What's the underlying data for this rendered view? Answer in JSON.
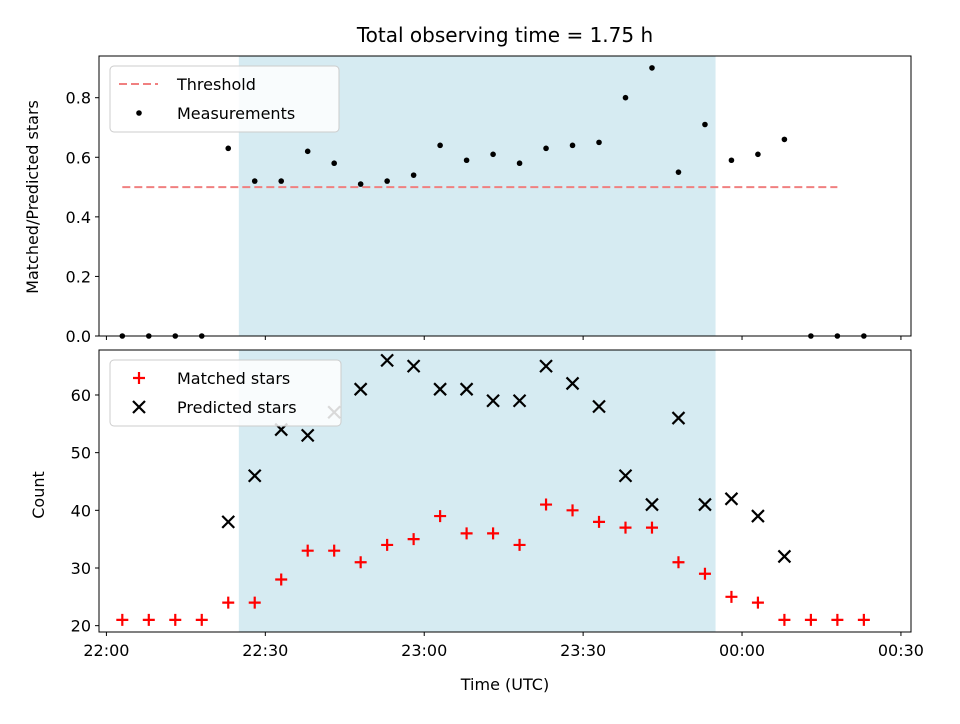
{
  "title": "Total observing time = 1.75 h",
  "colors": {
    "threshold": "#f08080",
    "measurement": "#000000",
    "matched": "#ff0000",
    "predicted": "#000000",
    "observing_span": "#add8e6"
  },
  "chart_data": [
    {
      "type": "scatter",
      "panel": "top",
      "title": "Total observing time = 1.75 h",
      "xlabel": "",
      "ylabel": "Matched/Predicted stars",
      "ylim": [
        0,
        0.94
      ],
      "yticks": [
        "0.0",
        "0.2",
        "0.4",
        "0.6",
        "0.8"
      ],
      "ytick_values": [
        0,
        0.2,
        0.4,
        0.6,
        0.8
      ],
      "shaded_span_x": [
        "22:25",
        "23:55"
      ],
      "legend": {
        "placement": "upper-left",
        "entries": [
          "Threshold",
          "Measurements"
        ]
      },
      "series": [
        {
          "name": "Threshold",
          "style": "dashed-line",
          "x": [
            "22:03",
            "22:48",
            "23:33",
            "00:18"
          ],
          "values": [
            0.5,
            0.5,
            0.5,
            0.5
          ]
        },
        {
          "name": "Measurements",
          "style": "dot",
          "x": [
            "22:03",
            "22:08",
            "22:13",
            "22:18",
            "22:23",
            "22:28",
            "22:33",
            "22:38",
            "22:43",
            "22:48",
            "22:53",
            "22:58",
            "23:03",
            "23:08",
            "23:13",
            "23:18",
            "23:23",
            "23:28",
            "23:33",
            "23:38",
            "23:43",
            "23:48",
            "23:53",
            "23:58",
            "00:03",
            "00:08",
            "00:13",
            "00:18",
            "00:23"
          ],
          "values": [
            0,
            0,
            0,
            0,
            0.63,
            0.52,
            0.52,
            0.62,
            0.58,
            0.51,
            0.52,
            0.54,
            0.64,
            0.59,
            0.61,
            0.58,
            0.63,
            0.64,
            0.65,
            0.8,
            0.9,
            0.55,
            0.71,
            0.59,
            0.61,
            0.66,
            0,
            0,
            0
          ]
        }
      ]
    },
    {
      "type": "scatter",
      "panel": "bottom",
      "xlabel": "Time (UTC)",
      "ylabel": "Count",
      "ylim": [
        18.9,
        67.8
      ],
      "yticks": [
        "20",
        "30",
        "40",
        "50",
        "60"
      ],
      "ytick_values": [
        20,
        30,
        40,
        50,
        60
      ],
      "xticks": [
        "22:00",
        "22:30",
        "23:00",
        "23:30",
        "00:00",
        "00:30"
      ],
      "shaded_span_x": [
        "22:25",
        "23:55"
      ],
      "legend": {
        "placement": "upper-left",
        "entries": [
          "Matched stars",
          "Predicted stars"
        ]
      },
      "series": [
        {
          "name": "Matched stars",
          "marker": "plus",
          "x": [
            "22:03",
            "22:08",
            "22:13",
            "22:18",
            "22:23",
            "22:28",
            "22:33",
            "22:38",
            "22:43",
            "22:48",
            "22:53",
            "22:58",
            "23:03",
            "23:08",
            "23:13",
            "23:18",
            "23:23",
            "23:28",
            "23:33",
            "23:38",
            "23:43",
            "23:48",
            "23:53",
            "23:58",
            "00:03",
            "00:08",
            "00:13",
            "00:18",
            "00:23"
          ],
          "values": [
            21,
            21,
            21,
            21,
            24,
            24,
            28,
            33,
            33,
            31,
            34,
            35,
            39,
            36,
            36,
            34,
            41,
            40,
            38,
            37,
            37,
            31,
            29,
            25,
            24,
            21,
            21,
            21,
            21
          ]
        },
        {
          "name": "Predicted stars",
          "marker": "x",
          "x": [
            "22:23",
            "22:28",
            "22:33",
            "22:38",
            "22:43",
            "22:48",
            "22:53",
            "22:58",
            "23:03",
            "23:08",
            "23:13",
            "23:18",
            "23:23",
            "23:28",
            "23:33",
            "23:38",
            "23:43",
            "23:48",
            "23:53",
            "23:58",
            "00:03",
            "00:08"
          ],
          "values": [
            38,
            46,
            54,
            53,
            57,
            61,
            66,
            65,
            61,
            61,
            59,
            59,
            65,
            62,
            58,
            46,
            41,
            56,
            41,
            42,
            39,
            32
          ]
        }
      ]
    }
  ]
}
